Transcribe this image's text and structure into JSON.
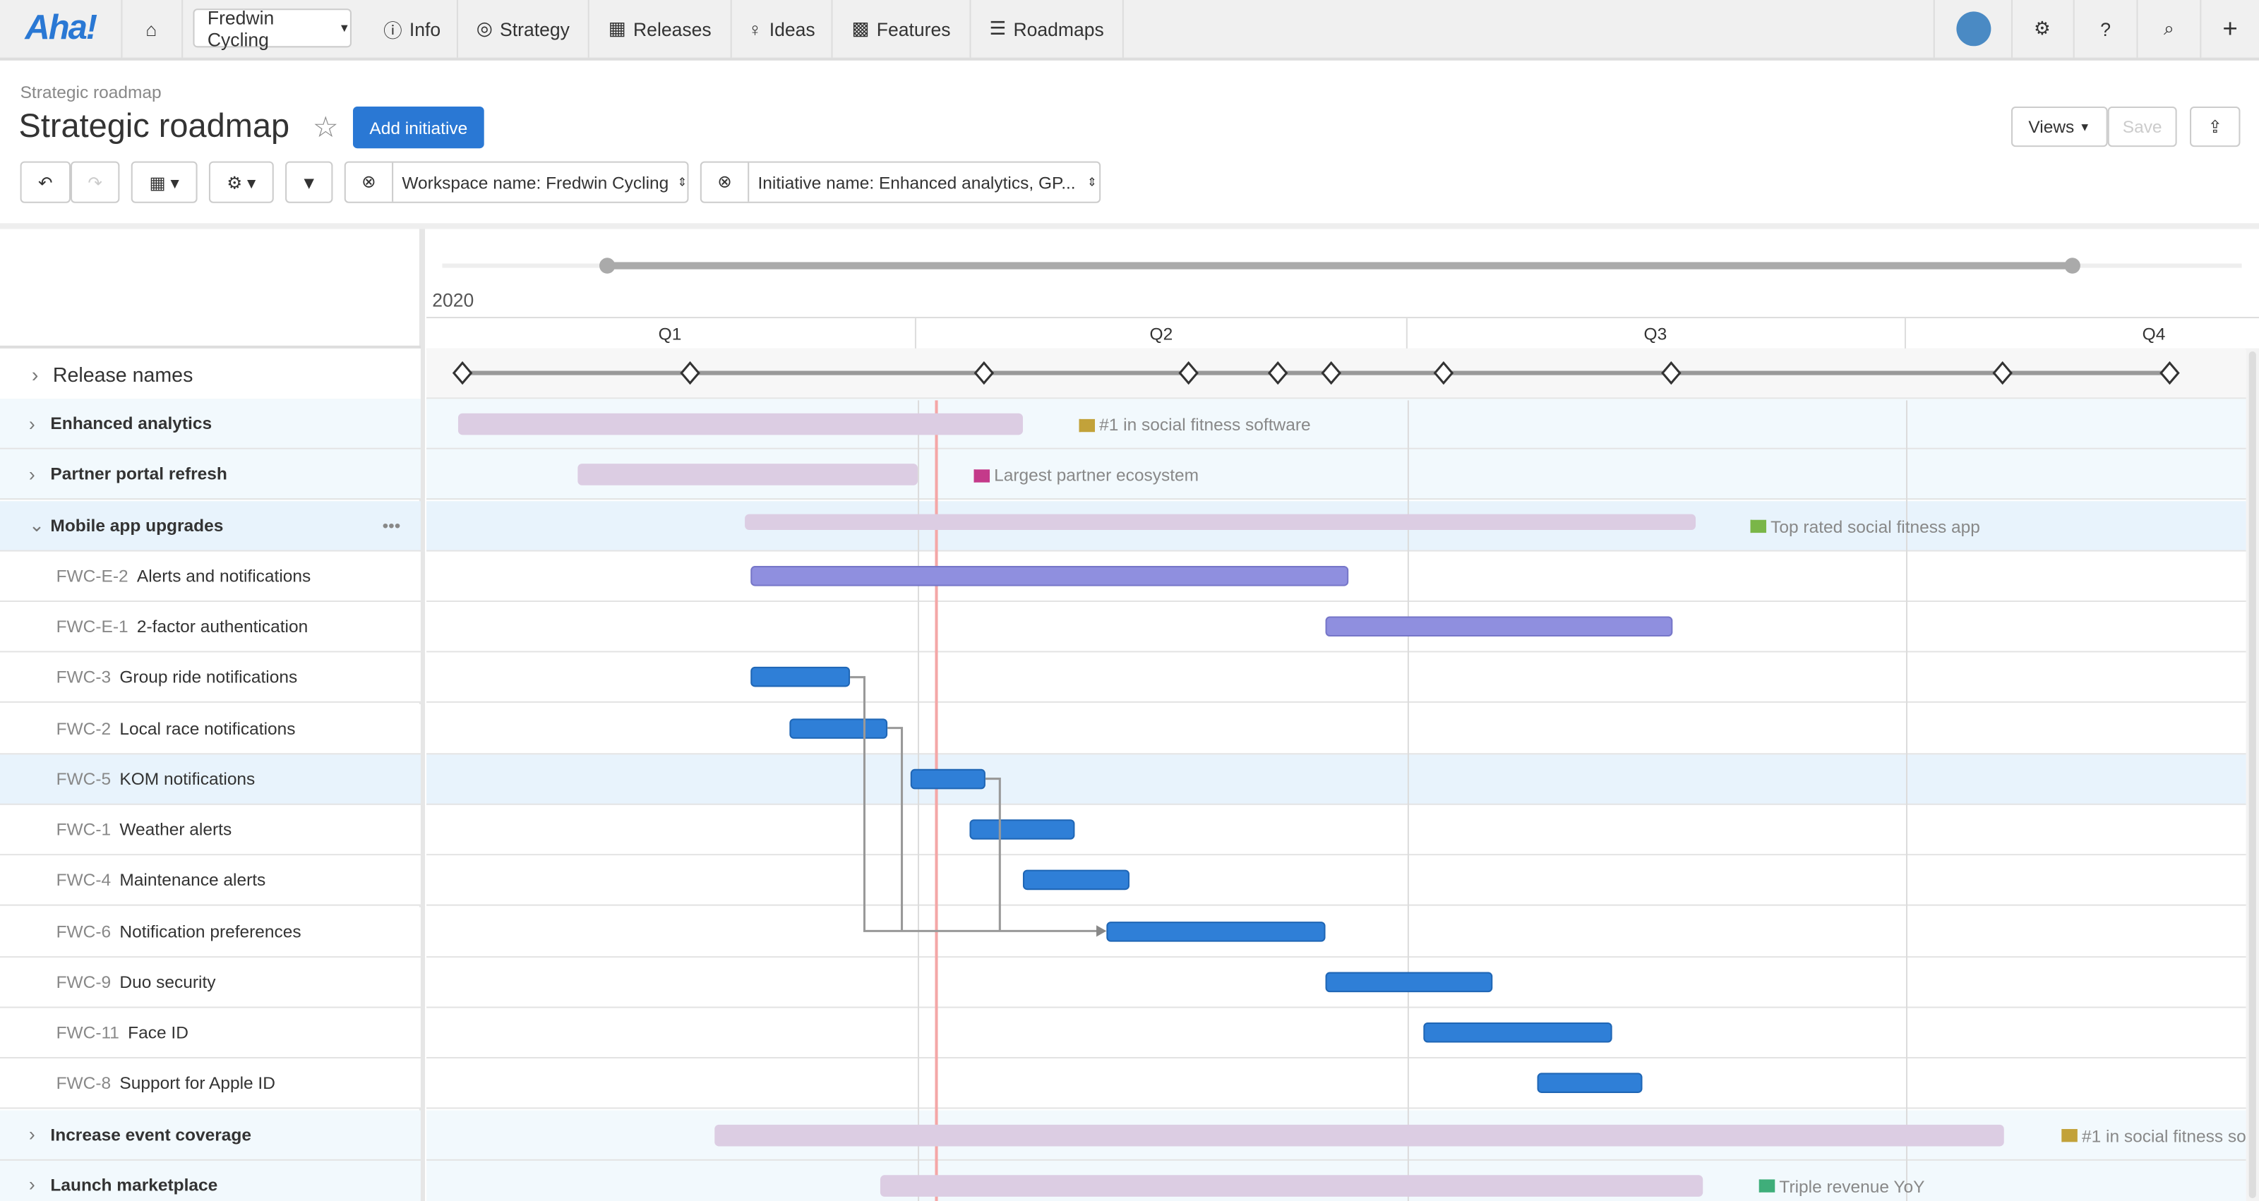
{
  "nav": {
    "logo": "Aha!",
    "workspace": "Fredwin Cycling",
    "items": [
      "Info",
      "Strategy",
      "Releases",
      "Ideas",
      "Features",
      "Roadmaps"
    ]
  },
  "page": {
    "breadcrumb": "Strategic roadmap",
    "title": "Strategic roadmap",
    "add_button": "Add initiative",
    "views": "Views",
    "save": "Save"
  },
  "filters": {
    "workspace": "Workspace name: Fredwin Cycling",
    "initiative": "Initiative name: Enhanced analytics, GP..."
  },
  "timeline": {
    "year": "2020",
    "quarters": [
      "Q1",
      "Q2",
      "Q3",
      "Q4"
    ],
    "release_row": "Release names"
  },
  "colors": {
    "accent": "#2a78d4",
    "initiative_bar": "#dccde3",
    "epic_bar": "#8f8fdf",
    "feature_bar": "#2f7fd7",
    "today": "#f4a7a7"
  },
  "rows": [
    {
      "type": "initiative",
      "name": "Enhanced analytics",
      "goal": "#1 in social fitness software",
      "goal_color": "#c2a23a"
    },
    {
      "type": "initiative",
      "name": "Partner portal refresh",
      "goal": "Largest partner ecosystem",
      "goal_color": "#c43a8a"
    },
    {
      "type": "initiative",
      "name": "Mobile app upgrades",
      "goal": "Top rated social fitness app",
      "goal_color": "#7ab648",
      "expanded": true
    },
    {
      "type": "epic",
      "key": "FWC-E-2",
      "name": "Alerts and notifications"
    },
    {
      "type": "epic",
      "key": "FWC-E-1",
      "name": "2-factor authentication"
    },
    {
      "type": "feature",
      "key": "FWC-3",
      "name": "Group ride notifications"
    },
    {
      "type": "feature",
      "key": "FWC-2",
      "name": "Local race notifications"
    },
    {
      "type": "feature",
      "key": "FWC-5",
      "name": "KOM notifications"
    },
    {
      "type": "feature",
      "key": "FWC-1",
      "name": "Weather alerts"
    },
    {
      "type": "feature",
      "key": "FWC-4",
      "name": "Maintenance alerts"
    },
    {
      "type": "feature",
      "key": "FWC-6",
      "name": "Notification preferences"
    },
    {
      "type": "feature",
      "key": "FWC-9",
      "name": "Duo security"
    },
    {
      "type": "feature",
      "key": "FWC-11",
      "name": "Face ID"
    },
    {
      "type": "feature",
      "key": "FWC-8",
      "name": "Support for Apple ID"
    },
    {
      "type": "initiative",
      "name": "Increase event coverage",
      "goal": "#1 in social fitness so",
      "goal_color": "#c2a23a"
    },
    {
      "type": "initiative",
      "name": "Launch marketplace",
      "goal": "Triple revenue YoY",
      "goal_color": "#3fae7a"
    }
  ]
}
